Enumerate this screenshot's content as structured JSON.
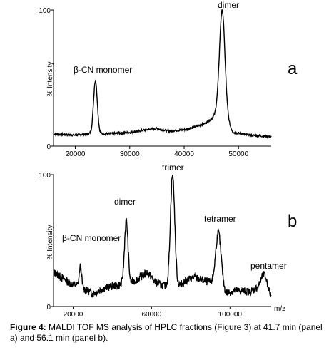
{
  "caption": {
    "label": "Figure 4:",
    "text": "MALDI TOF MS analysis of HPLC fractions (Figure 3) at 41.7 min (panel a) and 56.1 min (panel b)."
  },
  "chart_data": [
    {
      "type": "line",
      "panel_label": "a",
      "xlabel": "",
      "ylabel": "% Intensity",
      "xlim": [
        16000,
        56000
      ],
      "ylim": [
        0,
        100
      ],
      "x_ticks": [
        20000,
        30000,
        40000,
        50000
      ],
      "x_tick_labels": [
        "20000",
        "30000",
        "40000",
        "50000"
      ],
      "y_ticks": [
        0,
        100
      ],
      "y_tick_labels": [
        "0",
        "100"
      ],
      "baseline": [
        [
          16000,
          9
        ],
        [
          20000,
          8
        ],
        [
          22000,
          9
        ],
        [
          26000,
          9
        ],
        [
          30000,
          10
        ],
        [
          33000,
          12
        ],
        [
          35000,
          13
        ],
        [
          37000,
          11
        ],
        [
          40000,
          12
        ],
        [
          42000,
          14
        ],
        [
          44000,
          17
        ],
        [
          45000,
          20
        ],
        [
          46000,
          24
        ],
        [
          48000,
          18
        ],
        [
          49000,
          10
        ],
        [
          52000,
          8
        ],
        [
          56000,
          7
        ]
      ],
      "peaks": [
        {
          "label": "β-CN monomer",
          "x": 23700,
          "y": 48,
          "width": 350
        },
        {
          "label": "dimer",
          "x": 47000,
          "y": 100,
          "width": 500
        }
      ]
    },
    {
      "type": "line",
      "panel_label": "b",
      "xlabel": "m/z",
      "ylabel": "% Intensity",
      "xlim": [
        10000,
        121000
      ],
      "ylim": [
        0,
        100
      ],
      "x_ticks": [
        20000,
        60000,
        100000
      ],
      "x_tick_labels": [
        "20000",
        "60000",
        "100000"
      ],
      "y_ticks": [
        0,
        100
      ],
      "y_tick_labels": [
        "0",
        "100"
      ],
      "baseline": [
        [
          10000,
          26
        ],
        [
          14000,
          22
        ],
        [
          18000,
          18
        ],
        [
          22000,
          16
        ],
        [
          26000,
          13
        ],
        [
          30000,
          10
        ],
        [
          36000,
          14
        ],
        [
          42000,
          16
        ],
        [
          48000,
          17
        ],
        [
          52000,
          20
        ],
        [
          56000,
          24
        ],
        [
          58000,
          26
        ],
        [
          62000,
          18
        ],
        [
          66000,
          16
        ],
        [
          70000,
          15
        ],
        [
          74000,
          16
        ],
        [
          78000,
          20
        ],
        [
          82000,
          22
        ],
        [
          86000,
          20
        ],
        [
          90000,
          18
        ],
        [
          94000,
          17
        ],
        [
          98000,
          10
        ],
        [
          102000,
          12
        ],
        [
          106000,
          12
        ],
        [
          110000,
          11
        ],
        [
          114000,
          14
        ],
        [
          117000,
          12
        ],
        [
          121000,
          7
        ]
      ],
      "peaks": [
        {
          "label": "β-CN monomer",
          "x": 23700,
          "y": 30,
          "width": 600
        },
        {
          "label": "dimer",
          "x": 47100,
          "y": 65,
          "width": 900
        },
        {
          "label": "trimer",
          "x": 70700,
          "y": 100,
          "width": 1100
        },
        {
          "label": "tetramer",
          "x": 94100,
          "y": 56,
          "width": 1400
        },
        {
          "label": "pentamer",
          "x": 117500,
          "y": 24,
          "width": 1600
        }
      ]
    }
  ]
}
